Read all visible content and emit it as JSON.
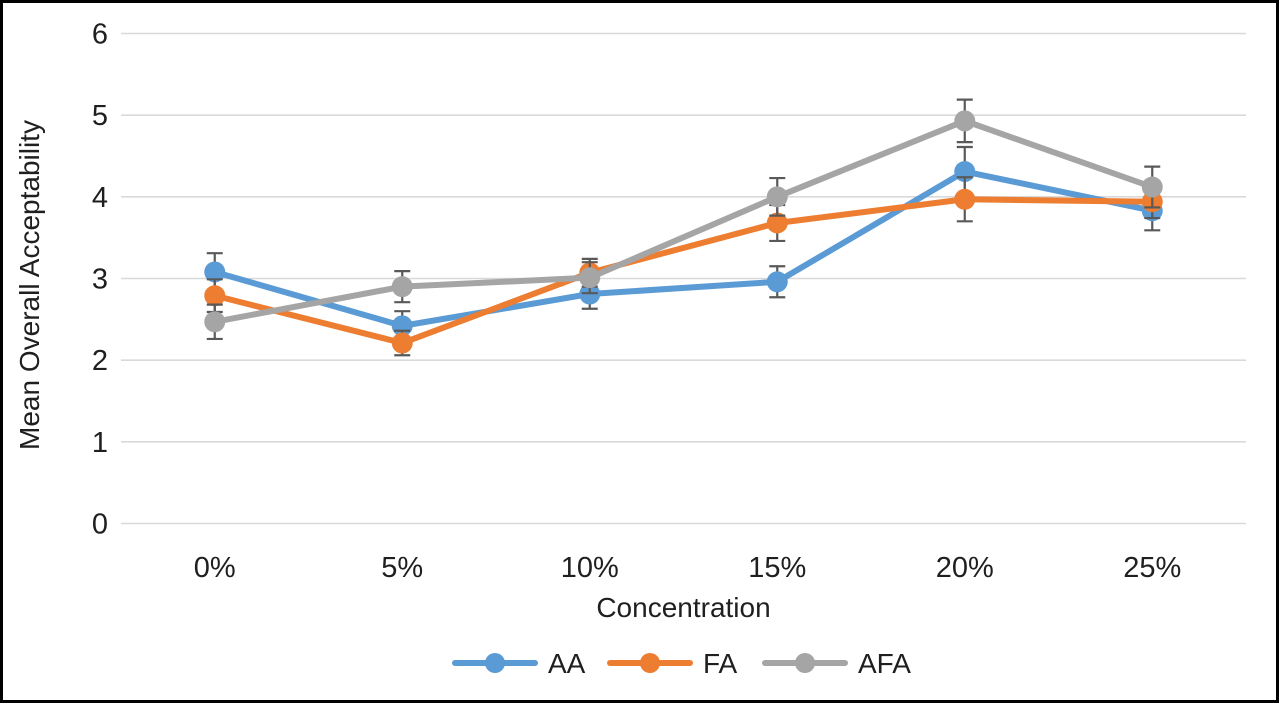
{
  "chart_data": {
    "type": "line",
    "categories": [
      "0%",
      "5%",
      "10%",
      "15%",
      "20%",
      "25%"
    ],
    "series": [
      {
        "name": "AA",
        "color": "#5B9BD5",
        "values": [
          3.08,
          2.42,
          2.81,
          2.96,
          4.31,
          3.83
        ],
        "errors": [
          0.23,
          0.18,
          0.18,
          0.19,
          0.3,
          0.24
        ]
      },
      {
        "name": "FA",
        "color": "#ED7D31",
        "values": [
          2.79,
          2.21,
          3.07,
          3.68,
          3.97,
          3.94
        ],
        "errors": [
          0.2,
          0.15,
          0.17,
          0.22,
          0.27,
          0.2
        ]
      },
      {
        "name": "AFA",
        "color": "#A5A5A5",
        "values": [
          2.47,
          2.9,
          3.01,
          4.0,
          4.93,
          4.12
        ],
        "errors": [
          0.21,
          0.19,
          0.19,
          0.23,
          0.26,
          0.25
        ]
      }
    ],
    "title": "",
    "xlabel": "Concentration",
    "ylabel": "Mean Overall Acceptability",
    "ylim": [
      0,
      6
    ],
    "yticks": [
      0,
      1,
      2,
      3,
      4,
      5,
      6
    ],
    "grid": "horizontal",
    "legend_position": "bottom-center",
    "error_bars": "y, both directions, capped"
  },
  "styles": {
    "background": "#FFFFFF",
    "frame_border_color": "#000000",
    "grid_color": "#D9D9D9",
    "error_bar_color": "#595959",
    "text_color": "#1F1F1F"
  }
}
